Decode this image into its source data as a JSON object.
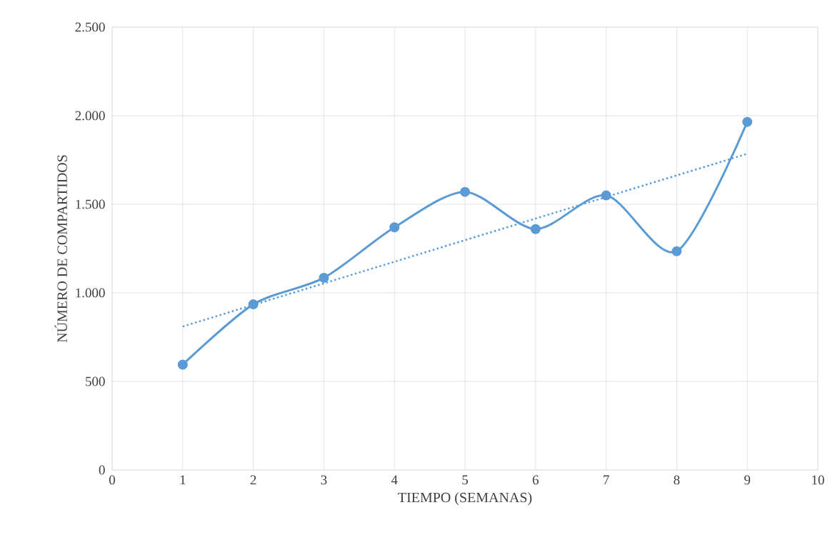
{
  "chart_data": {
    "type": "line",
    "xlabel": "TIEMPO (SEMANAS)",
    "ylabel": "NÚMERO DE COMPARTIDOS",
    "series": [
      {
        "color": "#5b9bd5",
        "x": [
          1,
          2,
          3,
          4,
          5,
          6,
          7,
          8,
          9
        ],
        "values": [
          595,
          935,
          1085,
          1370,
          1570,
          1360,
          1550,
          1235,
          1965
        ],
        "marker": "circle",
        "line_style": "solid"
      },
      {
        "type": "line",
        "color": "#5b9bd5",
        "x": [
          1,
          9
        ],
        "values": [
          810,
          1785
        ],
        "marker": "none",
        "line_style": "dotted"
      }
    ],
    "xlim": [
      0,
      10
    ],
    "ylim": [
      0,
      2500
    ],
    "xticks": [
      0,
      1,
      2,
      3,
      4,
      5,
      6,
      7,
      8,
      9,
      10
    ],
    "yticks": [
      {
        "value": 0,
        "label": "0"
      },
      {
        "value": 500,
        "label": "500"
      },
      {
        "value": 1000,
        "label": "1.000"
      },
      {
        "value": 1500,
        "label": "1.500"
      },
      {
        "value": 2000,
        "label": "2.000"
      },
      {
        "value": 2500,
        "label": "2.500"
      }
    ],
    "grid": true
  }
}
